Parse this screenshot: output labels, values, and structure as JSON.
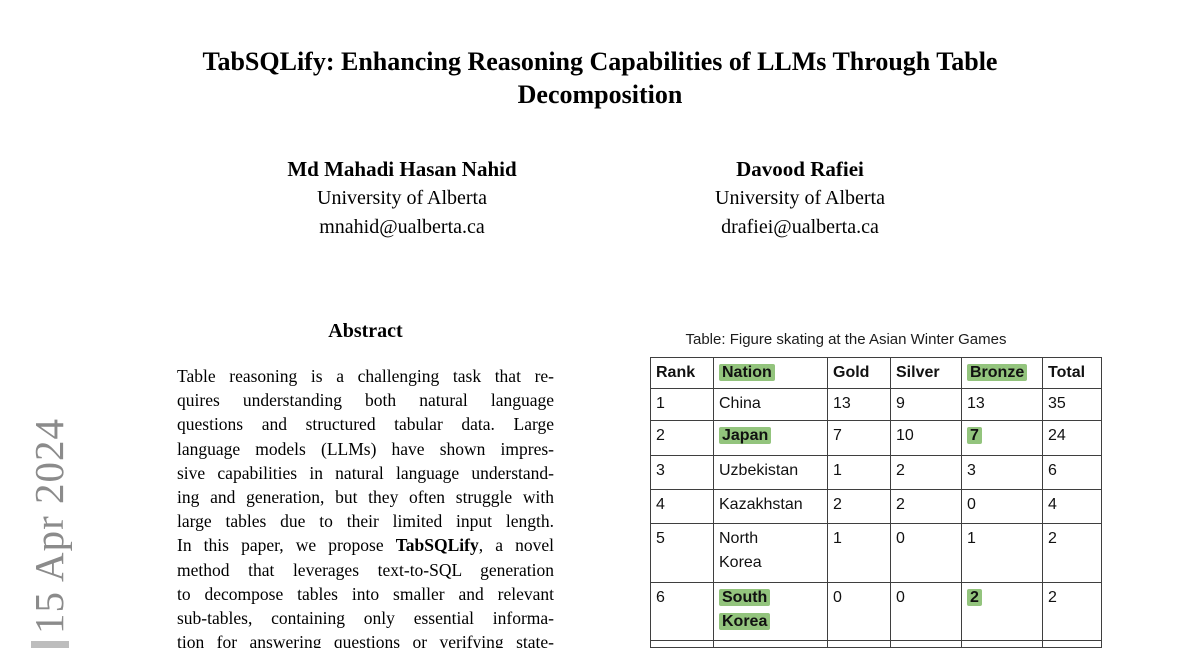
{
  "sidebar": {
    "date_text": "15 Apr 2024"
  },
  "title": {
    "lines": [
      "TabSQLify: Enhancing Reasoning Capabilities of LLMs Through Table",
      "Decomposition"
    ]
  },
  "authors": [
    {
      "name": "Md Mahadi Hasan Nahid",
      "affiliation": "University of Alberta",
      "email": "mnahid@ualberta.ca"
    },
    {
      "name": "Davood Rafiei",
      "affiliation": "University of Alberta",
      "email": "drafiei@ualberta.ca"
    }
  ],
  "abstract": {
    "heading": "Abstract",
    "lines": [
      "Table reasoning is a challenging task that re-",
      "quires understanding both natural language",
      "questions and structured tabular data. Large",
      "language models (LLMs) have shown impres-",
      "sive capabilities in natural language understand-",
      "ing and generation, but they often struggle with",
      "large tables due to their limited input length.",
      "In this paper, we propose **TabSQLify**, a novel",
      "method that leverages text-to-SQL generation",
      "to decompose tables into smaller and relevant",
      "sub-tables, containing only essential informa-",
      "tion for answering questions or verifying state-"
    ]
  },
  "figure_table": {
    "caption": "Table: Figure skating at the Asian Winter Games",
    "highlight_color": "#93c47d",
    "columns": [
      {
        "text": "Rank",
        "highlight": false
      },
      {
        "text": "Nation",
        "highlight": true
      },
      {
        "text": "Gold",
        "highlight": false
      },
      {
        "text": "Silver",
        "highlight": false
      },
      {
        "text": "Bronze",
        "highlight": true
      },
      {
        "text": "Total",
        "highlight": false
      }
    ],
    "rows": [
      {
        "cells": [
          {
            "lines": [
              "1"
            ]
          },
          {
            "lines": [
              "China"
            ]
          },
          {
            "lines": [
              "13"
            ]
          },
          {
            "lines": [
              "9"
            ]
          },
          {
            "lines": [
              "13"
            ]
          },
          {
            "lines": [
              "35"
            ]
          }
        ]
      },
      {
        "cells": [
          {
            "lines": [
              "2"
            ]
          },
          {
            "lines": [
              "Japan"
            ],
            "highlight": true,
            "bold": true
          },
          {
            "lines": [
              "7"
            ]
          },
          {
            "lines": [
              "10"
            ]
          },
          {
            "lines": [
              "7"
            ],
            "highlight": true,
            "bold": true
          },
          {
            "lines": [
              "24"
            ]
          }
        ]
      },
      {
        "cells": [
          {
            "lines": [
              "3"
            ]
          },
          {
            "lines": [
              "Uzbekistan"
            ]
          },
          {
            "lines": [
              "1"
            ]
          },
          {
            "lines": [
              "2"
            ]
          },
          {
            "lines": [
              "3"
            ]
          },
          {
            "lines": [
              "6"
            ]
          }
        ]
      },
      {
        "cells": [
          {
            "lines": [
              "4"
            ]
          },
          {
            "lines": [
              "Kazakhstan"
            ]
          },
          {
            "lines": [
              "2"
            ]
          },
          {
            "lines": [
              "2"
            ]
          },
          {
            "lines": [
              "0"
            ]
          },
          {
            "lines": [
              "4"
            ]
          }
        ]
      },
      {
        "cells": [
          {
            "lines": [
              "5"
            ]
          },
          {
            "lines": [
              "North",
              "Korea"
            ]
          },
          {
            "lines": [
              "1"
            ]
          },
          {
            "lines": [
              "0"
            ]
          },
          {
            "lines": [
              "1"
            ]
          },
          {
            "lines": [
              "2"
            ]
          }
        ]
      },
      {
        "cells": [
          {
            "lines": [
              "6"
            ]
          },
          {
            "lines": [
              "South",
              "Korea"
            ],
            "highlight": true,
            "bold": true
          },
          {
            "lines": [
              "0"
            ]
          },
          {
            "lines": [
              "0"
            ]
          },
          {
            "lines": [
              "2"
            ],
            "highlight": true,
            "bold": true
          },
          {
            "lines": [
              "2"
            ]
          }
        ]
      }
    ]
  }
}
